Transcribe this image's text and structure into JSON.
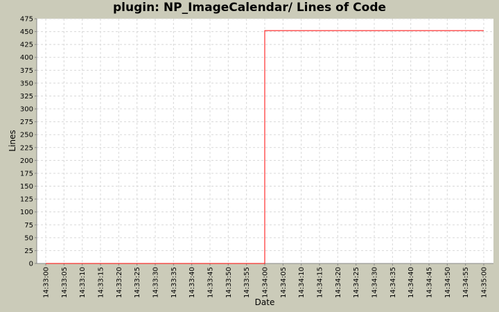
{
  "chart_data": {
    "type": "line",
    "title": "plugin: NP_ImageCalendar/ Lines of Code",
    "xlabel": "Date",
    "ylabel": "Lines",
    "ylim": [
      0,
      475
    ],
    "yticks": [
      0,
      25,
      50,
      75,
      100,
      125,
      150,
      175,
      200,
      225,
      250,
      275,
      300,
      325,
      350,
      375,
      400,
      425,
      450,
      475
    ],
    "xticks": [
      "14:33:00",
      "14:33:05",
      "14:33:10",
      "14:33:15",
      "14:33:20",
      "14:33:25",
      "14:33:30",
      "14:33:35",
      "14:33:40",
      "14:33:45",
      "14:33:50",
      "14:33:55",
      "14:34:00",
      "14:34:05",
      "14:34:10",
      "14:34:15",
      "14:34:20",
      "14:34:25",
      "14:34:30",
      "14:34:35",
      "14:34:40",
      "14:34:45",
      "14:34:50",
      "14:34:55",
      "14:35:00"
    ],
    "grid": true,
    "step": true,
    "series": [
      {
        "x": [
          "14:33:00",
          "14:34:00",
          "14:35:00"
        ],
        "y": [
          0,
          452,
          452
        ],
        "color": "#ff0000"
      }
    ]
  }
}
